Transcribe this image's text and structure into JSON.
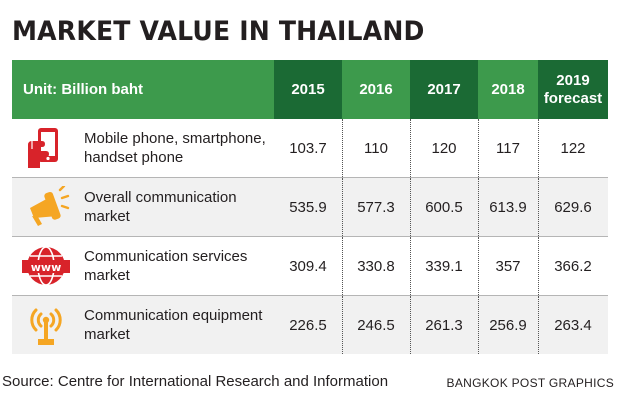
{
  "title": "MARKET VALUE IN THAILAND",
  "colors": {
    "header_dark": "#1b6a34",
    "header_light": "#3d9a4c",
    "icon_red": "#d8232a",
    "icon_orange": "#f5a623"
  },
  "chart_data": {
    "type": "table",
    "unit_label": "Unit: Billion baht",
    "columns": [
      {
        "line1": "2015",
        "line2": ""
      },
      {
        "line1": "2016",
        "line2": ""
      },
      {
        "line1": "2017",
        "line2": ""
      },
      {
        "line1": "2018",
        "line2": ""
      },
      {
        "line1": "2019",
        "line2": "forecast"
      }
    ],
    "rows": [
      {
        "icon": "smartphone-hand-icon",
        "label": "Mobile phone, smartphone, handset phone",
        "values": [
          "103.7",
          "110",
          "120",
          "117",
          "122"
        ]
      },
      {
        "icon": "megaphone-icon",
        "label": "Overall communication market",
        "values": [
          "535.9",
          "577.3",
          "600.5",
          "613.9",
          "629.6"
        ]
      },
      {
        "icon": "www-globe-icon",
        "label": "Communication services market",
        "values": [
          "309.4",
          "330.8",
          "339.1",
          "357",
          "366.2"
        ]
      },
      {
        "icon": "antenna-icon",
        "label": "Communication equipment market",
        "values": [
          "226.5",
          "246.5",
          "261.3",
          "256.9",
          "263.4"
        ]
      }
    ]
  },
  "footer": {
    "source": "Source: Centre for International Research and Information",
    "credit": "BANGKOK POST GRAPHICS"
  }
}
